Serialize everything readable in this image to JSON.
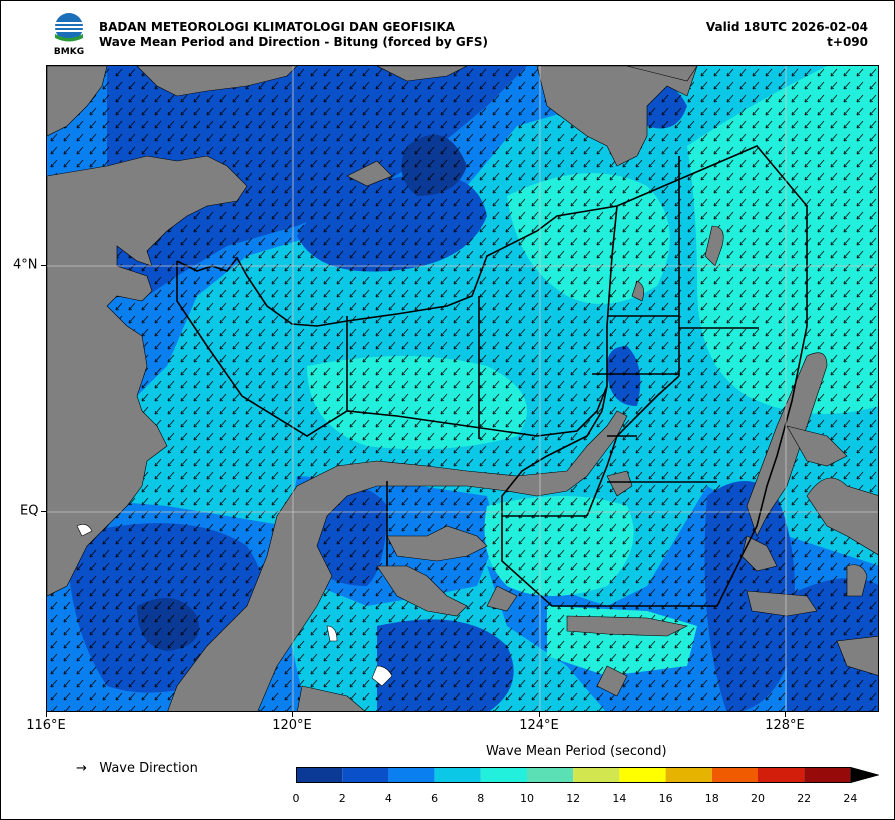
{
  "header": {
    "org": "BADAN METEOROLOGI KLIMATOLOGI DAN GEOFISIKA",
    "product": "Wave Mean Period and Direction - Bitung (forced by GFS)",
    "valid": "Valid 18UTC 2026-02-04",
    "lead": "t+090",
    "logo_text": "BMKG"
  },
  "map": {
    "x_ticks": [
      "116°E",
      "120°E",
      "124°E",
      "128°E"
    ],
    "y_ticks": [
      "4°N",
      "EQ"
    ],
    "field": "Wave Mean Period",
    "vector_field": "Wave Direction",
    "land_color": "#808080"
  },
  "legend": {
    "arrow_glyph": "→",
    "direction_label": "Wave Direction"
  },
  "colorbar": {
    "title": "Wave Mean Period (second)",
    "labels": [
      "0",
      "2",
      "4",
      "6",
      "8",
      "10",
      "12",
      "14",
      "16",
      "18",
      "20",
      "22",
      "24"
    ],
    "colors": [
      "#0a3a96",
      "#0a50c8",
      "#0a80f0",
      "#0ac8e6",
      "#22f0dc",
      "#5ae0b4",
      "#d2e650",
      "#ffff00",
      "#e6b400",
      "#f05a00",
      "#d21e0a",
      "#960a0a"
    ],
    "extend_color": "#000000"
  }
}
